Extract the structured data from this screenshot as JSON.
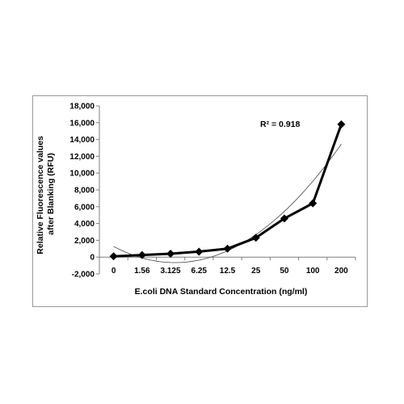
{
  "chart_data": {
    "type": "line",
    "categories": [
      "0",
      "1.56",
      "3.125",
      "6.25",
      "12.5",
      "25",
      "50",
      "100",
      "200"
    ],
    "series": [
      {
        "values": [
          100,
          250,
          400,
          650,
          1000,
          2300,
          4600,
          6400,
          15800
        ],
        "color": "#000000",
        "marker": "diamond"
      }
    ],
    "trendline": {
      "type": "polynomial",
      "r_squared_label": "R² = 0.918",
      "color": "#444444"
    },
    "xlabel": "E.coli DNA Standard Concentration (ng/ml)",
    "ylabel": [
      "Relative Fluorescence values",
      "after Blanking (RFU)"
    ],
    "ylim": [
      -2000,
      18000
    ],
    "yticks": [
      "-2,000",
      "0",
      "2,000",
      "4,000",
      "6,000",
      "8,000",
      "10,000",
      "12,000",
      "14,000",
      "16,000",
      "18,000"
    ],
    "grid": false,
    "legend": "none"
  }
}
